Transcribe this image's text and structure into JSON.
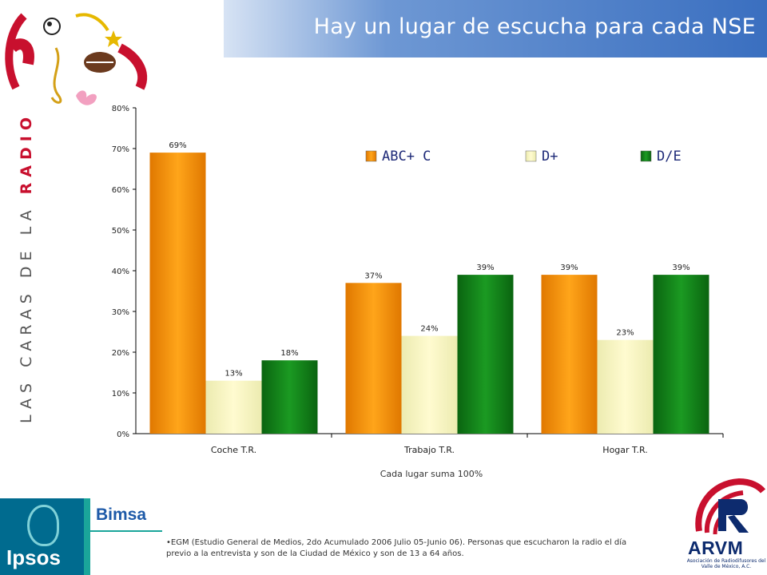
{
  "header": {
    "title": "Hay un lugar de escucha para cada NSE"
  },
  "side_title": {
    "text_main": "LAS CARAS DE LA",
    "text_accent": "RADIO"
  },
  "chart_data": {
    "type": "bar",
    "categories": [
      "Coche T.R.",
      "Trabajo T.R.",
      "Hogar T.R."
    ],
    "series": [
      {
        "name": "ABC+ C",
        "values": [
          69,
          37,
          39
        ],
        "labels": [
          "69%",
          "37%",
          "39%"
        ],
        "color": "#f08c00"
      },
      {
        "name": "D+",
        "values": [
          13,
          24,
          23
        ],
        "labels": [
          "13%",
          "24%",
          "23%"
        ],
        "color": "#f4f0a0"
      },
      {
        "name": "D/E",
        "values": [
          18,
          39,
          39
        ],
        "labels": [
          "18%",
          "39%",
          "39%"
        ],
        "color": "#0f7a16"
      }
    ],
    "ylim": [
      0,
      80
    ],
    "yticks": [
      "0%",
      "10%",
      "20%",
      "30%",
      "40%",
      "50%",
      "60%",
      "70%",
      "80%"
    ],
    "legend_position": "top-right",
    "grid": false
  },
  "subtitle": "Cada lugar suma 100%",
  "footnote": "•EGM (Estudio General de Medios, 2do Acumulado 2006 Julio 05-Junio 06). Personas que escucharon la radio el día previo a la entrevista y son de la Ciudad de México y son de 13 a 64 años.",
  "logos": {
    "ipsos": "Ipsos",
    "bimsa": "Bimsa",
    "arvm": "ARVM",
    "arvm_sub": "Asociación de Radiodifusores del Valle de México, A.C."
  }
}
